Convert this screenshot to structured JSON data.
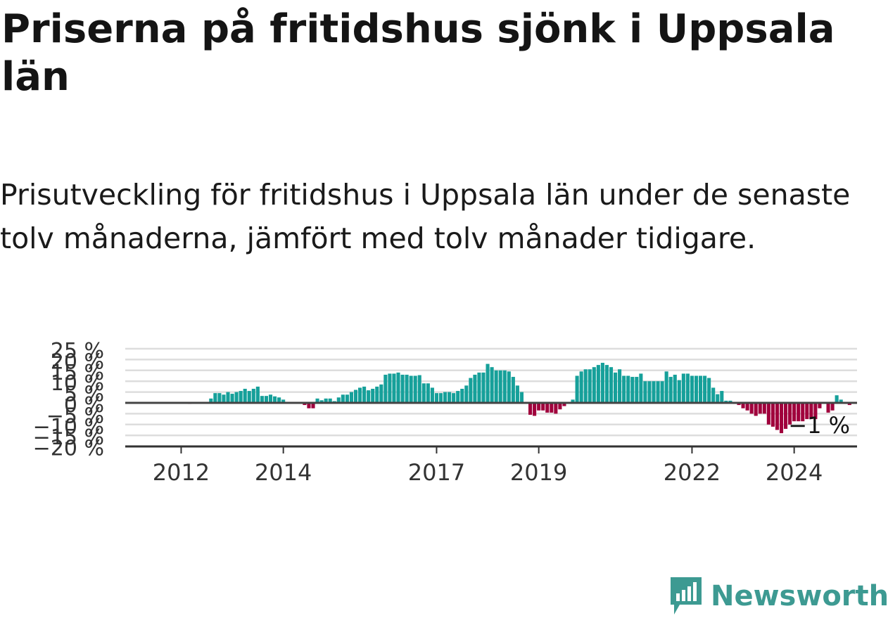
{
  "title": "Priserna på fritidshus sjönk i Uppsala län",
  "subtitle": "Prisutveckling för fritidshus i Uppsala län under de senaste tolv månaderna, jämfört med tolv månader tidigare.",
  "brand": {
    "name": "Newsworthy",
    "color": "#3d9a92"
  },
  "chart_data": {
    "type": "bar",
    "x_start": "2011-01",
    "y_ticks": [
      {
        "value": 25,
        "label": "25 %"
      },
      {
        "value": 20,
        "label": "20 %"
      },
      {
        "value": 15,
        "label": "15 %"
      },
      {
        "value": 10,
        "label": "10 %"
      },
      {
        "value": 5,
        "label": "5 %"
      },
      {
        "value": 0,
        "label": "0 %"
      },
      {
        "value": -5,
        "label": "−5 %"
      },
      {
        "value": -10,
        "label": "−10 %"
      },
      {
        "value": -15,
        "label": "−15 %"
      },
      {
        "value": -20,
        "label": "−20 %"
      }
    ],
    "x_ticks": [
      {
        "index": 12,
        "label": "2012"
      },
      {
        "index": 36,
        "label": "2014"
      },
      {
        "index": 72,
        "label": "2017"
      },
      {
        "index": 96,
        "label": "2019"
      },
      {
        "index": 132,
        "label": "2022"
      },
      {
        "index": 156,
        "label": "2024"
      }
    ],
    "ylim": [
      -20,
      25
    ],
    "grid": true,
    "colors": {
      "positive": "#16a09a",
      "negative": "#a0003c",
      "gridline": "#dddddd",
      "zero_line": "#444444",
      "axis": "#333333"
    },
    "last_value_label": "−1 %",
    "values": [
      0,
      0,
      0,
      0,
      0,
      0,
      0,
      0,
      0,
      0,
      0,
      0,
      0,
      0,
      -0.5,
      0,
      0,
      0,
      0,
      2,
      4.5,
      4.5,
      3.8,
      5,
      4.2,
      5,
      5.5,
      6.5,
      5.5,
      6.5,
      7.5,
      3.2,
      3.2,
      3.8,
      3,
      2.5,
      1.5,
      0.4,
      0,
      0,
      0,
      -1,
      -2.5,
      -2.5,
      2,
      1.2,
      2,
      2,
      0.8,
      2.5,
      3.8,
      3.8,
      5,
      6,
      7,
      7.5,
      5.8,
      6.5,
      7.5,
      8.5,
      13,
      13.5,
      13.5,
      14,
      13,
      13,
      12.5,
      12.5,
      12.8,
      9,
      9,
      7,
      4.5,
      4.5,
      5,
      5,
      4.5,
      5.5,
      6.5,
      8,
      11.5,
      13,
      14,
      14,
      18,
      16.5,
      15,
      15,
      15,
      14.5,
      12,
      8,
      5,
      0,
      -5.5,
      -6,
      -3.5,
      -3.5,
      -4.5,
      -4.5,
      -5,
      -3,
      -1.5,
      0,
      1.5,
      12.5,
      14.5,
      15.5,
      15.5,
      16.5,
      17.5,
      18.5,
      17.5,
      16.5,
      14,
      15.5,
      12.5,
      12.5,
      12,
      12,
      13.5,
      10,
      10,
      10,
      10,
      10,
      14.5,
      12,
      13,
      10.5,
      13.5,
      13.5,
      12.5,
      12.5,
      12.5,
      12.5,
      11.5,
      7,
      4,
      5.5,
      1,
      1,
      -0.5,
      -1,
      -2.5,
      -3.5,
      -5,
      -6,
      -5,
      -5,
      -10,
      -11,
      -12.5,
      -14,
      -12,
      -10,
      -8.5,
      -8.5,
      -8.5,
      -7.5,
      -7.5,
      -7.5,
      -2.5,
      0,
      -4.5,
      -3.5,
      3.5,
      1.5,
      -0.5,
      -1
    ]
  }
}
